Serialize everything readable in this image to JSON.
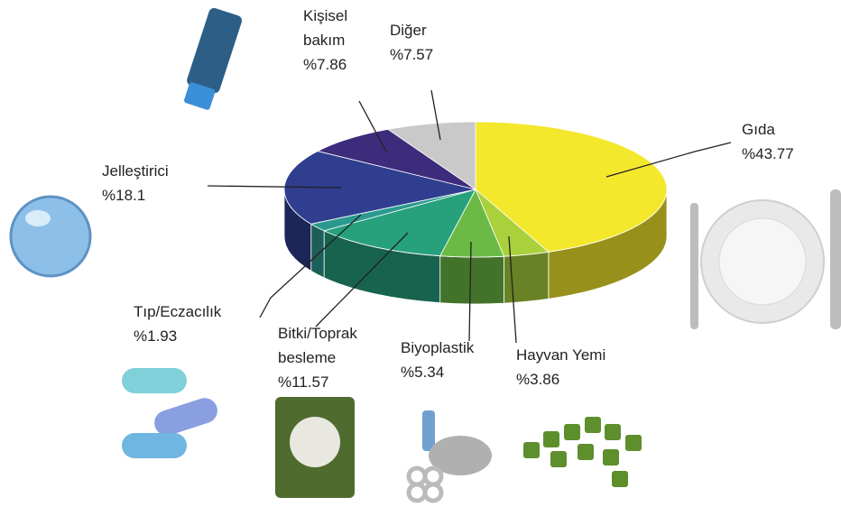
{
  "chart_data": {
    "type": "pie",
    "categories": [
      "Gıda",
      "Hayvan Yemi",
      "Biyoplastik",
      "Bitki/Toprak besleme",
      "Tıp/Eczacılık",
      "Jelleştirici",
      "Kişisel bakım",
      "Diğer"
    ],
    "values": [
      43.77,
      3.86,
      5.34,
      11.57,
      1.93,
      18.1,
      7.86,
      7.57
    ],
    "value_labels": [
      "%43.77",
      "%3.86",
      "%5.34",
      "%11.57",
      "%1.93",
      "%18.1",
      "%7.86",
      "%7.57"
    ],
    "colors": [
      "#f3e82c",
      "#a9d13b",
      "#6cba46",
      "#27a07c",
      "#2b9a8e",
      "#2f3e8e",
      "#3d2b7b",
      "#c9c9c9"
    ]
  }
}
